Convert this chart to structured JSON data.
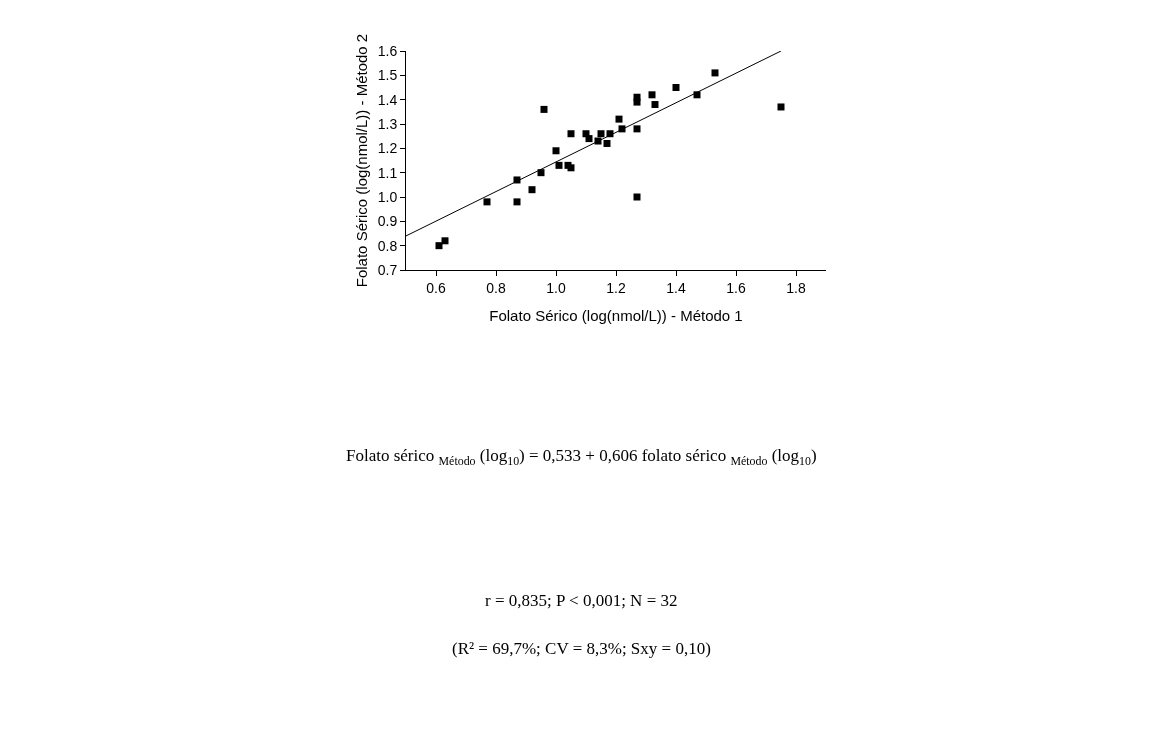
{
  "chart_data": {
    "type": "scatter",
    "xlabel": "Folato Sérico (log(nmol/L)) - Método 1",
    "ylabel": "Folato Sérico (log(nmol/L)) - Método 2",
    "annotations": [
      "Folato sérico $_{Método}$ (log$_{10}$) = 0,533 + 0,606 folato sérico $_{Método}$ (log$_{10}$)",
      "r = 0,835; P < 0,001; N = 32",
      "(R² = 69,7%; CV = 8,3%; Sxy = 0,10)"
    ],
    "series": [
      {
        "color": "#000000",
        "marker": "square",
        "x": [
          0.61,
          0.63,
          0.77,
          0.87,
          0.87,
          0.92,
          0.95,
          0.96,
          1.0,
          1.01,
          1.04,
          1.05,
          1.05,
          1.1,
          1.11,
          1.14,
          1.15,
          1.17,
          1.18,
          1.21,
          1.22,
          1.27,
          1.27,
          1.27,
          1.27,
          1.32,
          1.33,
          1.4,
          1.47,
          1.53,
          1.75
        ],
        "values": [
          0.8,
          0.82,
          0.98,
          0.98,
          1.07,
          1.03,
          1.1,
          1.36,
          1.19,
          1.13,
          1.13,
          1.12,
          1.26,
          1.26,
          1.24,
          1.23,
          1.26,
          1.22,
          1.26,
          1.32,
          1.28,
          1.28,
          1.39,
          1.41,
          1.0,
          1.42,
          1.38,
          1.45,
          1.42,
          1.51,
          1.37
        ]
      },
      {
        "type": "line",
        "color": "#000000",
        "line_style": "solid",
        "x": [
          0.5,
          1.75
        ],
        "values": [
          0.84,
          1.6
        ]
      }
    ],
    "xlim": [
      0.5,
      1.9
    ],
    "xticks": [
      0.6,
      0.8,
      {
        "value": 1,
        "label": "1.0"
      },
      1.2,
      1.4,
      1.6,
      1.8
    ],
    "ylim": [
      0.7,
      1.6
    ],
    "yticks": [
      0.7,
      0.8,
      0.9,
      {
        "value": 1,
        "label": "1.0"
      },
      1.1,
      1.2,
      1.3,
      1.4,
      1.5,
      1.6
    ],
    "legend": false
  }
}
